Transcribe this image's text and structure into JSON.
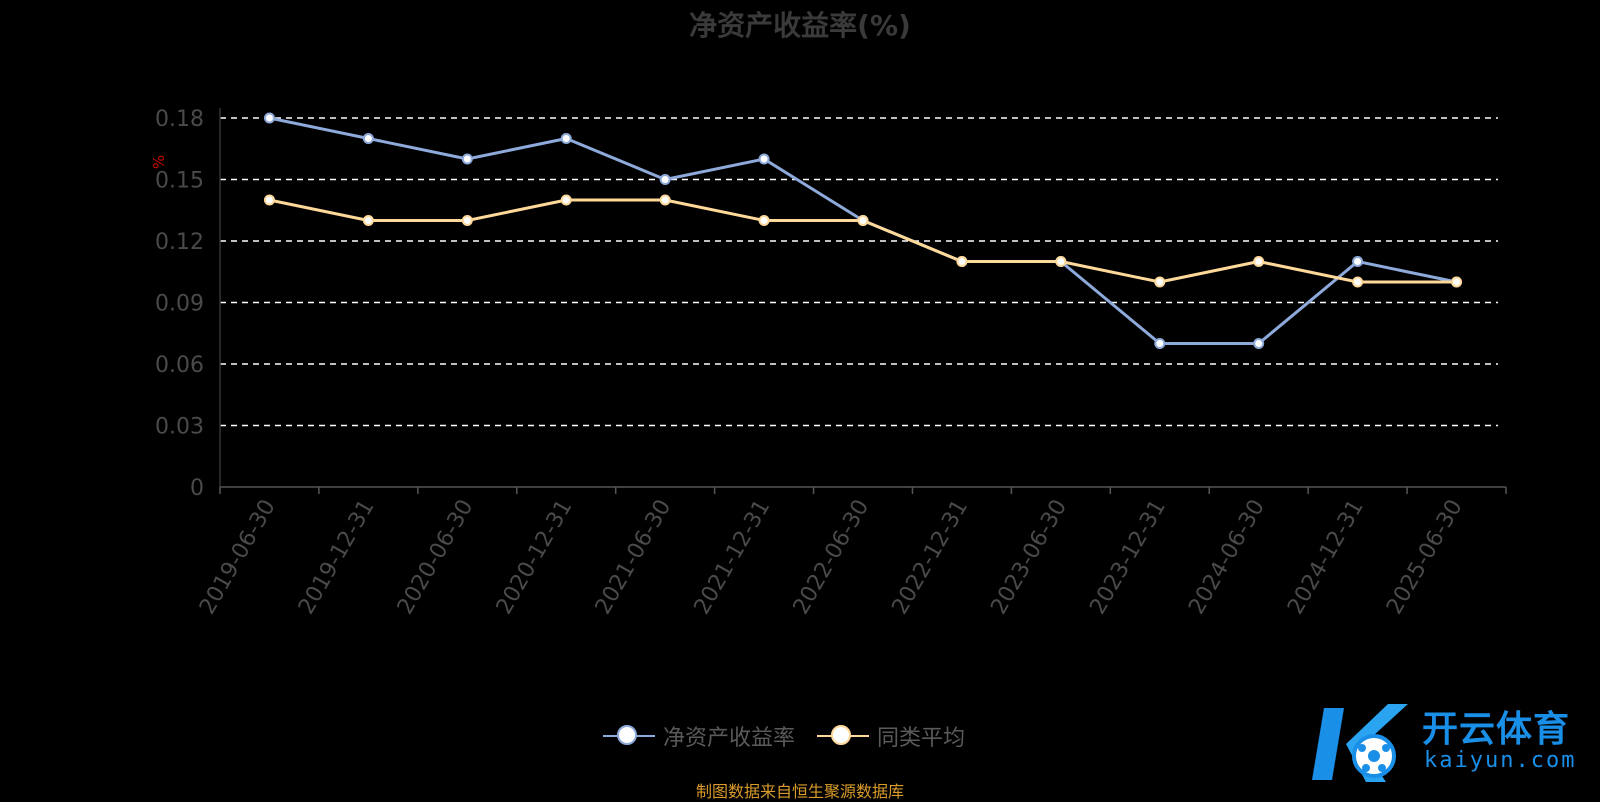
{
  "chart_data": {
    "type": "line",
    "title": "净资产收益率(%)",
    "ylabel": "%",
    "ylim": [
      0,
      0.18
    ],
    "yticks": [
      "0",
      "0.03",
      "0.06",
      "0.09",
      "0.12",
      "0.15",
      "0.18"
    ],
    "categories": [
      "2019-06-30",
      "2019-12-31",
      "2020-06-30",
      "2020-12-31",
      "2021-06-30",
      "2021-12-31",
      "2022-06-30",
      "2022-12-31",
      "2023-06-30",
      "2023-12-31",
      "2024-06-30",
      "2024-12-31",
      "2025-06-30"
    ],
    "series": [
      {
        "name": "净资产收益率",
        "color": "#8eaadb",
        "values": [
          0.18,
          0.17,
          0.16,
          0.17,
          0.15,
          0.16,
          0.13,
          0.11,
          0.11,
          0.07,
          0.07,
          0.11,
          0.1
        ]
      },
      {
        "name": "同类平均",
        "color": "#ffd99a",
        "values": [
          0.14,
          0.13,
          0.13,
          0.14,
          0.14,
          0.13,
          0.13,
          0.11,
          0.11,
          0.1,
          0.11,
          0.1,
          0.1
        ]
      }
    ],
    "grid": true,
    "legend_position": "bottom-center"
  },
  "footer": {
    "source_text": "制图数据来自恒生聚源数据库"
  },
  "watermark": {
    "brand": "开云体育",
    "domain": "kaiyun.com",
    "icon": "kaiyun-logo-icon",
    "color": "#1a8fe8"
  }
}
